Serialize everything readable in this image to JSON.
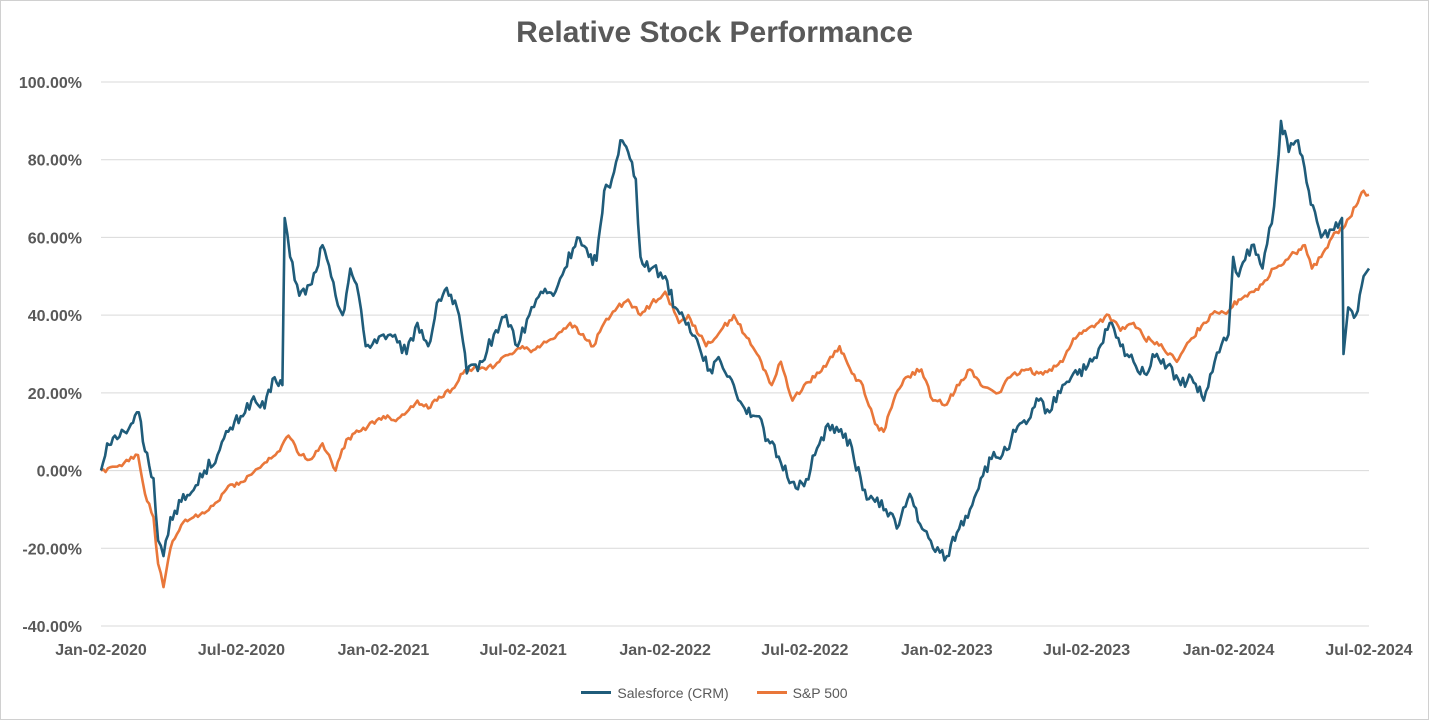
{
  "chart_data": {
    "type": "line",
    "title": "Relative Stock Performance",
    "xlabel": "",
    "ylabel": "",
    "ylim": [
      -40,
      100
    ],
    "y_ticks": [
      -40,
      -20,
      0,
      20,
      40,
      60,
      80,
      100
    ],
    "y_tick_labels": [
      "-40.00%",
      "-20.00%",
      "0.00%",
      "20.00%",
      "40.00%",
      "60.00%",
      "80.00%",
      "100.00%"
    ],
    "x_range": [
      "2020-01-02",
      "2024-07-02"
    ],
    "x_ticks": [
      "2020-01-02",
      "2020-07-02",
      "2021-01-02",
      "2021-07-02",
      "2022-01-02",
      "2022-07-02",
      "2023-01-02",
      "2023-07-02",
      "2024-01-02",
      "2024-07-02"
    ],
    "x_tick_labels": [
      "Jan-02-2020",
      "Jul-02-2020",
      "Jan-02-2021",
      "Jul-02-2021",
      "Jan-02-2022",
      "Jul-02-2022",
      "Jan-02-2023",
      "Jul-02-2023",
      "Jan-02-2024",
      "Jul-02-2024"
    ],
    "grid": "horizontal",
    "legend_position": "bottom",
    "series": [
      {
        "name": "Salesforce (CRM)",
        "color": "#1f5c7a",
        "points": [
          [
            "2020-01-02",
            0
          ],
          [
            "2020-01-10",
            7
          ],
          [
            "2020-01-20",
            9
          ],
          [
            "2020-02-01",
            10
          ],
          [
            "2020-02-10",
            12
          ],
          [
            "2020-02-20",
            15
          ],
          [
            "2020-02-28",
            5
          ],
          [
            "2020-03-10",
            -2
          ],
          [
            "2020-03-16",
            -18
          ],
          [
            "2020-03-23",
            -22
          ],
          [
            "2020-04-01",
            -12
          ],
          [
            "2020-04-15",
            -8
          ],
          [
            "2020-05-01",
            -5
          ],
          [
            "2020-05-15",
            0
          ],
          [
            "2020-06-01",
            4
          ],
          [
            "2020-06-15",
            10
          ],
          [
            "2020-07-01",
            14
          ],
          [
            "2020-07-15",
            18
          ],
          [
            "2020-08-01",
            16
          ],
          [
            "2020-08-14",
            24
          ],
          [
            "2020-08-24",
            22
          ],
          [
            "2020-08-27",
            65
          ],
          [
            "2020-09-03",
            55
          ],
          [
            "2020-09-15",
            45
          ],
          [
            "2020-10-01",
            48
          ],
          [
            "2020-10-15",
            58
          ],
          [
            "2020-11-01",
            45
          ],
          [
            "2020-11-10",
            40
          ],
          [
            "2020-11-20",
            52
          ],
          [
            "2020-12-01",
            45
          ],
          [
            "2020-12-10",
            32
          ],
          [
            "2021-01-02",
            35
          ],
          [
            "2021-01-20",
            33
          ],
          [
            "2021-02-01",
            30
          ],
          [
            "2021-02-15",
            38
          ],
          [
            "2021-03-01",
            32
          ],
          [
            "2021-03-15",
            44
          ],
          [
            "2021-03-25",
            47
          ],
          [
            "2021-04-10",
            40
          ],
          [
            "2021-04-20",
            25
          ],
          [
            "2021-05-10",
            28
          ],
          [
            "2021-05-25",
            35
          ],
          [
            "2021-06-10",
            40
          ],
          [
            "2021-06-25",
            32
          ],
          [
            "2021-07-10",
            40
          ],
          [
            "2021-07-25",
            46
          ],
          [
            "2021-08-10",
            45
          ],
          [
            "2021-08-25",
            52
          ],
          [
            "2021-09-10",
            60
          ],
          [
            "2021-09-25",
            55
          ],
          [
            "2021-10-05",
            54
          ],
          [
            "2021-10-15",
            72
          ],
          [
            "2021-10-25",
            75
          ],
          [
            "2021-11-05",
            85
          ],
          [
            "2021-11-15",
            82
          ],
          [
            "2021-11-25",
            75
          ],
          [
            "2021-12-01",
            55
          ],
          [
            "2021-12-15",
            52
          ],
          [
            "2022-01-02",
            50
          ],
          [
            "2022-01-15",
            42
          ],
          [
            "2022-02-01",
            38
          ],
          [
            "2022-02-15",
            32
          ],
          [
            "2022-03-01",
            26
          ],
          [
            "2022-03-15",
            28
          ],
          [
            "2022-04-01",
            22
          ],
          [
            "2022-04-15",
            16
          ],
          [
            "2022-05-01",
            14
          ],
          [
            "2022-05-15",
            8
          ],
          [
            "2022-06-01",
            2
          ],
          [
            "2022-06-15",
            -3
          ],
          [
            "2022-07-01",
            -4
          ],
          [
            "2022-07-15",
            4
          ],
          [
            "2022-08-01",
            12
          ],
          [
            "2022-08-15",
            10
          ],
          [
            "2022-09-01",
            6
          ],
          [
            "2022-09-15",
            -5
          ],
          [
            "2022-10-01",
            -8
          ],
          [
            "2022-10-15",
            -10
          ],
          [
            "2022-11-01",
            -14
          ],
          [
            "2022-11-15",
            -6
          ],
          [
            "2022-12-01",
            -15
          ],
          [
            "2022-12-15",
            -20
          ],
          [
            "2023-01-02",
            -22
          ],
          [
            "2023-01-15",
            -16
          ],
          [
            "2023-02-01",
            -10
          ],
          [
            "2023-02-15",
            -2
          ],
          [
            "2023-03-01",
            3
          ],
          [
            "2023-03-15",
            4
          ],
          [
            "2023-04-01",
            10
          ],
          [
            "2023-04-15",
            12
          ],
          [
            "2023-05-01",
            18
          ],
          [
            "2023-05-15",
            15
          ],
          [
            "2023-06-01",
            22
          ],
          [
            "2023-06-15",
            25
          ],
          [
            "2023-07-01",
            26
          ],
          [
            "2023-07-15",
            29
          ],
          [
            "2023-08-01",
            38
          ],
          [
            "2023-08-15",
            32
          ],
          [
            "2023-09-01",
            28
          ],
          [
            "2023-09-15",
            25
          ],
          [
            "2023-10-01",
            30
          ],
          [
            "2023-10-15",
            27
          ],
          [
            "2023-11-01",
            22
          ],
          [
            "2023-11-15",
            24
          ],
          [
            "2023-12-01",
            18
          ],
          [
            "2023-12-15",
            28
          ],
          [
            "2024-01-02",
            35
          ],
          [
            "2024-01-08",
            55
          ],
          [
            "2024-01-15",
            50
          ],
          [
            "2024-02-01",
            58
          ],
          [
            "2024-02-15",
            52
          ],
          [
            "2024-03-01",
            68
          ],
          [
            "2024-03-10",
            90
          ],
          [
            "2024-03-20",
            82
          ],
          [
            "2024-04-01",
            85
          ],
          [
            "2024-04-15",
            72
          ],
          [
            "2024-05-01",
            60
          ],
          [
            "2024-05-15",
            62
          ],
          [
            "2024-05-28",
            65
          ],
          [
            "2024-05-30",
            30
          ],
          [
            "2024-06-05",
            42
          ],
          [
            "2024-06-15",
            40
          ],
          [
            "2024-06-25",
            50
          ],
          [
            "2024-07-02",
            52
          ]
        ]
      },
      {
        "name": "S&P 500",
        "color": "#e9773a",
        "points": [
          [
            "2020-01-02",
            0
          ],
          [
            "2020-01-20",
            1
          ],
          [
            "2020-02-01",
            2
          ],
          [
            "2020-02-19",
            4
          ],
          [
            "2020-02-28",
            -6
          ],
          [
            "2020-03-10",
            -12
          ],
          [
            "2020-03-16",
            -24
          ],
          [
            "2020-03-23",
            -30
          ],
          [
            "2020-04-01",
            -20
          ],
          [
            "2020-04-15",
            -14
          ],
          [
            "2020-05-01",
            -12
          ],
          [
            "2020-05-15",
            -11
          ],
          [
            "2020-06-01",
            -8
          ],
          [
            "2020-06-15",
            -4
          ],
          [
            "2020-07-01",
            -3
          ],
          [
            "2020-07-15",
            -1
          ],
          [
            "2020-08-01",
            2
          ],
          [
            "2020-08-15",
            4
          ],
          [
            "2020-09-01",
            9
          ],
          [
            "2020-09-15",
            4
          ],
          [
            "2020-10-01",
            3
          ],
          [
            "2020-10-15",
            7
          ],
          [
            "2020-11-01",
            0
          ],
          [
            "2020-11-15",
            8
          ],
          [
            "2020-12-01",
            10
          ],
          [
            "2021-01-02",
            14
          ],
          [
            "2021-01-15",
            13
          ],
          [
            "2021-02-01",
            15
          ],
          [
            "2021-02-15",
            18
          ],
          [
            "2021-03-01",
            16
          ],
          [
            "2021-03-15",
            19
          ],
          [
            "2021-04-01",
            21
          ],
          [
            "2021-04-15",
            25
          ],
          [
            "2021-05-01",
            27
          ],
          [
            "2021-05-15",
            26
          ],
          [
            "2021-06-01",
            28
          ],
          [
            "2021-06-15",
            30
          ],
          [
            "2021-07-01",
            32
          ],
          [
            "2021-07-15",
            31
          ],
          [
            "2021-08-01",
            33
          ],
          [
            "2021-08-15",
            35
          ],
          [
            "2021-09-01",
            38
          ],
          [
            "2021-09-15",
            35
          ],
          [
            "2021-10-01",
            32
          ],
          [
            "2021-10-15",
            38
          ],
          [
            "2021-11-01",
            42
          ],
          [
            "2021-11-15",
            44
          ],
          [
            "2021-12-01",
            40
          ],
          [
            "2021-12-15",
            43
          ],
          [
            "2022-01-02",
            46
          ],
          [
            "2022-01-20",
            38
          ],
          [
            "2022-02-01",
            40
          ],
          [
            "2022-02-24",
            32
          ],
          [
            "2022-03-15",
            36
          ],
          [
            "2022-04-01",
            40
          ],
          [
            "2022-04-15",
            35
          ],
          [
            "2022-05-01",
            30
          ],
          [
            "2022-05-20",
            22
          ],
          [
            "2022-06-01",
            28
          ],
          [
            "2022-06-16",
            18
          ],
          [
            "2022-07-01",
            22
          ],
          [
            "2022-07-15",
            24
          ],
          [
            "2022-08-01",
            28
          ],
          [
            "2022-08-16",
            32
          ],
          [
            "2022-09-01",
            25
          ],
          [
            "2022-09-15",
            22
          ],
          [
            "2022-10-01",
            12
          ],
          [
            "2022-10-12",
            10
          ],
          [
            "2022-10-25",
            18
          ],
          [
            "2022-11-10",
            24
          ],
          [
            "2022-11-30",
            26
          ],
          [
            "2022-12-15",
            18
          ],
          [
            "2023-01-02",
            17
          ],
          [
            "2023-01-15",
            22
          ],
          [
            "2023-02-01",
            26
          ],
          [
            "2023-02-15",
            22
          ],
          [
            "2023-03-10",
            20
          ],
          [
            "2023-03-25",
            24
          ],
          [
            "2023-04-15",
            26
          ],
          [
            "2023-05-01",
            25
          ],
          [
            "2023-05-15",
            26
          ],
          [
            "2023-06-01",
            28
          ],
          [
            "2023-06-15",
            34
          ],
          [
            "2023-07-01",
            36
          ],
          [
            "2023-07-31",
            40
          ],
          [
            "2023-08-15",
            36
          ],
          [
            "2023-09-01",
            38
          ],
          [
            "2023-09-15",
            34
          ],
          [
            "2023-10-01",
            33
          ],
          [
            "2023-10-27",
            28
          ],
          [
            "2023-11-15",
            34
          ],
          [
            "2023-12-01",
            38
          ],
          [
            "2023-12-15",
            41
          ],
          [
            "2024-01-02",
            41
          ],
          [
            "2024-01-15",
            44
          ],
          [
            "2024-02-01",
            46
          ],
          [
            "2024-02-15",
            48
          ],
          [
            "2024-03-01",
            52
          ],
          [
            "2024-03-28",
            56
          ],
          [
            "2024-04-10",
            58
          ],
          [
            "2024-04-19",
            52
          ],
          [
            "2024-05-01",
            55
          ],
          [
            "2024-05-15",
            60
          ],
          [
            "2024-06-01",
            63
          ],
          [
            "2024-06-15",
            68
          ],
          [
            "2024-06-25",
            72
          ],
          [
            "2024-07-02",
            71
          ]
        ]
      }
    ]
  }
}
